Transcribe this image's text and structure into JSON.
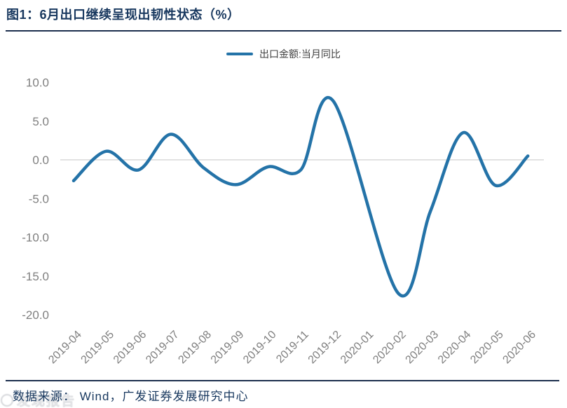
{
  "header": {
    "title": "图1：6月出口继续呈现出韧性状态（%）"
  },
  "legend": {
    "label": "出口金额:当月同比"
  },
  "chart_data": {
    "type": "line",
    "title": "图1：6月出口继续呈现出韧性状态（%）",
    "categories": [
      "2019-04",
      "2019-05",
      "2019-06",
      "2019-07",
      "2019-08",
      "2019-09",
      "2019-10",
      "2019-11",
      "2019-12",
      "2020-01",
      "2020-02",
      "2020-03",
      "2020-04",
      "2020-05",
      "2020-06"
    ],
    "series": [
      {
        "name": "出口金额:当月同比",
        "color": "#2473A8",
        "smooth": true,
        "values": [
          -2.7,
          1.1,
          -1.3,
          3.3,
          -1.0,
          -3.2,
          -0.9,
          -1.3,
          7.6,
          null,
          -17.2,
          -6.6,
          3.5,
          -3.3,
          0.5
        ]
      }
    ],
    "y_tick_labels": [
      "10.0",
      "5.0",
      "0.0",
      "-5.0",
      "-10.0",
      "-15.0",
      "-20.0"
    ],
    "ylim": [
      -20,
      10
    ],
    "xlabel": "",
    "ylabel": "",
    "grid": "horizontal zero line only",
    "zero_line_color": "#D9D9D9",
    "axis_label_color": "#7f7f7f",
    "legend_position": "top-center",
    "x_tick_rotation_deg": -45
  },
  "footer": {
    "source": "数据来源： Wind，广发证券发展研究中心"
  },
  "watermark": {
    "text": "发现报告"
  }
}
